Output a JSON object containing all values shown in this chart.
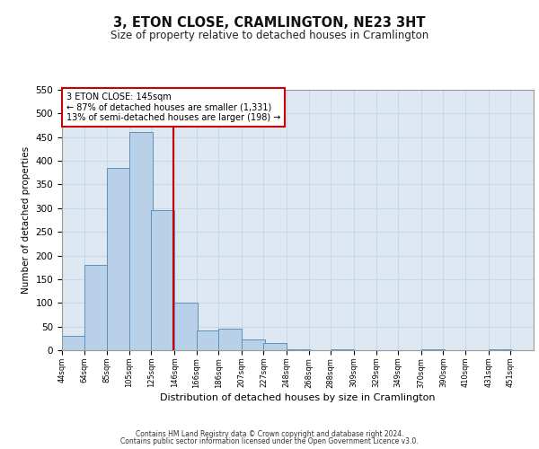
{
  "title": "3, ETON CLOSE, CRAMLINGTON, NE23 3HT",
  "subtitle": "Size of property relative to detached houses in Cramlington",
  "xlabel": "Distribution of detached houses by size in Cramlington",
  "ylabel": "Number of detached properties",
  "footnote1": "Contains HM Land Registry data © Crown copyright and database right 2024.",
  "footnote2": "Contains public sector information licensed under the Open Government Licence v3.0.",
  "annotation_title": "3 ETON CLOSE: 145sqm",
  "annotation_line1": "← 87% of detached houses are smaller (1,331)",
  "annotation_line2": "13% of semi-detached houses are larger (198) →",
  "property_size": 145,
  "bar_left_edges": [
    44,
    64,
    85,
    105,
    125,
    146,
    166,
    186,
    207,
    227,
    248,
    268,
    288,
    309,
    329,
    349,
    370,
    390,
    410,
    431
  ],
  "bar_heights": [
    30,
    180,
    385,
    460,
    295,
    100,
    42,
    45,
    22,
    15,
    2,
    0,
    1,
    0,
    0,
    0,
    1,
    0,
    0,
    1
  ],
  "bin_width": 21,
  "bar_color": "#b8d0e8",
  "bar_edge_color": "#6090b8",
  "grid_color": "#c8d8ea",
  "bg_color": "#dde8f2",
  "vline_color": "#cc0000",
  "ylim": [
    0,
    550
  ],
  "tick_labels": [
    "44sqm",
    "64sqm",
    "85sqm",
    "105sqm",
    "125sqm",
    "146sqm",
    "166sqm",
    "186sqm",
    "207sqm",
    "227sqm",
    "248sqm",
    "268sqm",
    "288sqm",
    "309sqm",
    "329sqm",
    "349sqm",
    "370sqm",
    "390sqm",
    "410sqm",
    "431sqm",
    "451sqm"
  ]
}
